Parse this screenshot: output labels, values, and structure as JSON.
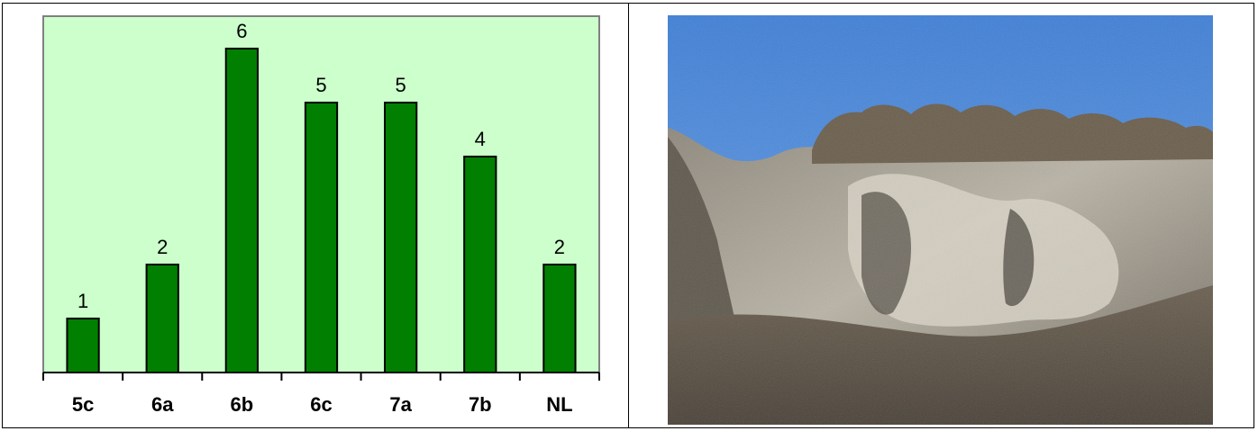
{
  "chart_data": {
    "type": "bar",
    "categories": [
      "5c",
      "6a",
      "6b",
      "6c",
      "7a",
      "7b",
      "NL"
    ],
    "values": [
      1,
      2,
      6,
      5,
      5,
      4,
      2
    ],
    "data_labels": [
      "1",
      "2",
      "6",
      "5",
      "5",
      "4",
      "2"
    ],
    "title": "",
    "xlabel": "",
    "ylabel": "",
    "ylim": [
      0,
      6.6
    ],
    "grid": false,
    "legend": "none",
    "colors": {
      "bar_fill": "#007f00",
      "bar_stroke": "#000000",
      "plot_background": "#ccffcc",
      "plot_border": "#808080",
      "axis": "#000000"
    }
  },
  "photo": {
    "subject": "limestone-cliff-landscape",
    "colors": {
      "sky_top": "#3f7fd6",
      "sky_bottom": "#6ea3e6",
      "rock_light": "#d8d2c6",
      "rock_mid": "#9c968a",
      "rock_dark": "#4a463e",
      "vegetation": "#6b5e4c"
    }
  }
}
